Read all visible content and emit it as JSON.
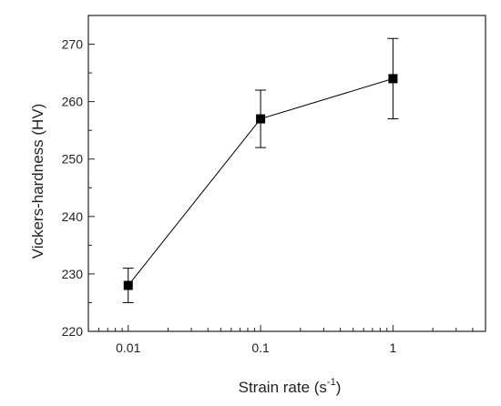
{
  "chart_data": {
    "type": "scatter",
    "xscale": "log",
    "x": [
      0.01,
      0.1,
      1
    ],
    "y": [
      228,
      257,
      264
    ],
    "y_err_low": [
      3,
      5,
      7
    ],
    "y_err_high": [
      3,
      5,
      7
    ],
    "xlim": [
      0.005,
      5
    ],
    "ylim": [
      220,
      275
    ],
    "x_ticks": [
      0.01,
      0.1,
      1
    ],
    "x_tick_labels": [
      "0.01",
      "0.1",
      "1"
    ],
    "y_ticks": [
      220,
      230,
      240,
      250,
      260,
      270
    ],
    "y_tick_labels": [
      "220",
      "230",
      "240",
      "250",
      "260",
      "270"
    ],
    "xlabel_text": "Strain rate (s",
    "xlabel_sup": "-1",
    "xlabel_close": ")",
    "ylabel": "Vickers-hardness (HV)",
    "grid": false,
    "legend": "none",
    "marker": "square",
    "colors": {
      "series": "#000000",
      "axis": "#222222",
      "background": "#ffffff"
    }
  }
}
